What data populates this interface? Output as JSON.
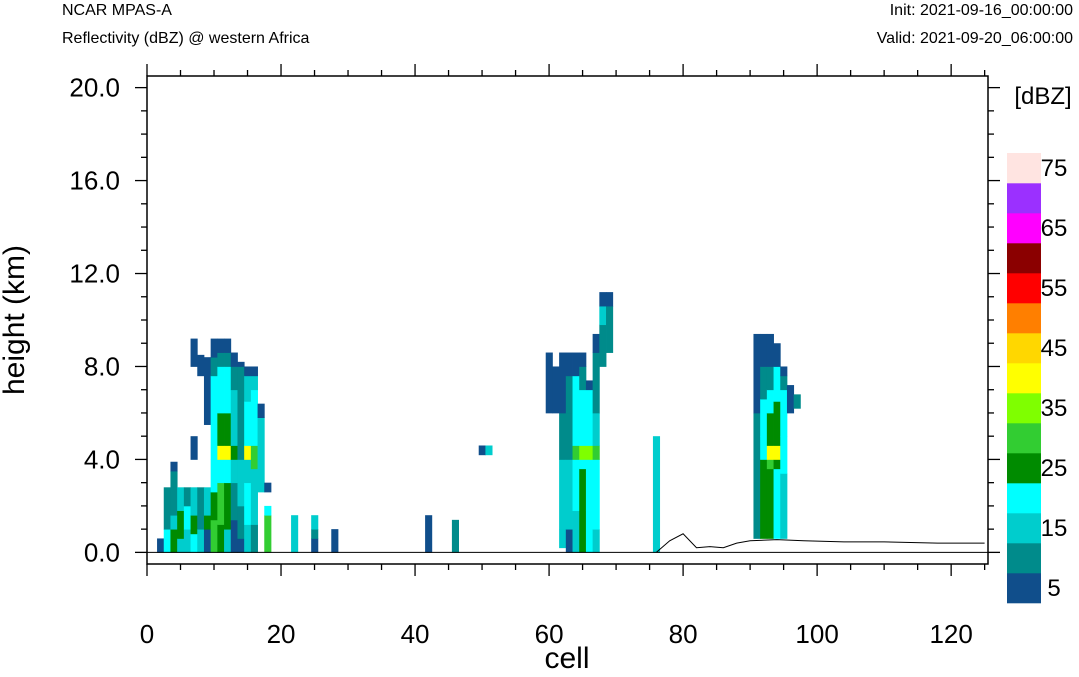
{
  "header": {
    "title": "NCAR MPAS-A",
    "subtitle": "Reflectivity (dBZ) @ western Africa",
    "init": "Init: 2021-09-16_00:00:00",
    "valid": "Valid: 2021-09-20_06:00:00"
  },
  "chart_data": {
    "type": "heatmap",
    "title": "NCAR MPAS-A",
    "subtitle": "Reflectivity (dBZ) @ western Africa",
    "xlabel": "cell",
    "ylabel": "height (km)",
    "xlim": [
      0,
      125.5
    ],
    "ylim": [
      -0.5,
      20.5
    ],
    "x_ticks": [
      "0",
      "20",
      "40",
      "60",
      "80",
      "100",
      "120"
    ],
    "y_ticks": [
      "0.0",
      "4.0",
      "8.0",
      "12.0",
      "16.0",
      "20.0"
    ],
    "colorbar": {
      "unit": "[dBZ]",
      "levels": [
        5,
        10,
        15,
        20,
        25,
        30,
        35,
        40,
        45,
        50,
        55,
        60,
        65,
        70,
        75
      ],
      "labels": [
        "5",
        "15",
        "25",
        "35",
        "45",
        "55",
        "65",
        "75"
      ],
      "colors": [
        "#104e8b",
        "#008b8b",
        "#00cdcd",
        "#00ffff",
        "#008b00",
        "#32cd32",
        "#7fff00",
        "#ffff00",
        "#ffd700",
        "#ff7f00",
        "#ff0000",
        "#8b0000",
        "#ff00ff",
        "#9b30ff",
        "#ffe4e1"
      ]
    },
    "grid": false,
    "cells": [
      [
        2,
        0.0,
        0.6,
        5
      ],
      [
        3,
        0.0,
        1.0,
        20
      ],
      [
        3,
        1.0,
        2.8,
        10
      ],
      [
        4,
        0.0,
        1.0,
        25
      ],
      [
        4,
        1.0,
        1.6,
        15
      ],
      [
        4,
        1.6,
        3.5,
        10
      ],
      [
        4,
        3.5,
        3.9,
        5
      ],
      [
        5,
        0.0,
        0.6,
        15
      ],
      [
        5,
        0.6,
        1.8,
        25
      ],
      [
        5,
        1.8,
        2.8,
        15
      ],
      [
        6,
        0.0,
        1.0,
        15
      ],
      [
        6,
        1.0,
        2.0,
        20
      ],
      [
        6,
        2.0,
        2.8,
        10
      ],
      [
        7,
        0.0,
        0.8,
        20
      ],
      [
        7,
        0.8,
        1.6,
        25
      ],
      [
        7,
        1.6,
        2.8,
        15
      ],
      [
        7,
        4.0,
        5.0,
        5
      ],
      [
        7,
        8.0,
        9.2,
        5
      ],
      [
        8,
        0.0,
        1.0,
        15
      ],
      [
        8,
        1.0,
        2.8,
        10
      ],
      [
        8,
        7.6,
        8.5,
        5
      ],
      [
        9,
        0.0,
        1.0,
        5
      ],
      [
        9,
        1.0,
        1.6,
        25
      ],
      [
        9,
        1.6,
        2.8,
        15
      ],
      [
        9,
        5.5,
        8.4,
        5
      ],
      [
        10,
        0.0,
        1.4,
        30
      ],
      [
        10,
        1.4,
        2.6,
        25
      ],
      [
        10,
        2.6,
        4.0,
        20
      ],
      [
        10,
        4.0,
        7.6,
        20
      ],
      [
        10,
        7.6,
        8.4,
        10
      ],
      [
        10,
        8.4,
        9.2,
        5
      ],
      [
        11,
        0.0,
        1.2,
        25
      ],
      [
        11,
        1.2,
        3.0,
        30
      ],
      [
        11,
        3.0,
        4.0,
        20
      ],
      [
        11,
        4.0,
        4.6,
        40
      ],
      [
        11,
        4.6,
        6.0,
        25
      ],
      [
        11,
        6.0,
        8.0,
        20
      ],
      [
        11,
        8.0,
        8.6,
        10
      ],
      [
        11,
        8.6,
        9.2,
        5
      ],
      [
        12,
        0.0,
        1.0,
        15
      ],
      [
        12,
        1.0,
        3.0,
        25
      ],
      [
        12,
        3.0,
        4.0,
        20
      ],
      [
        12,
        4.0,
        4.6,
        40
      ],
      [
        12,
        4.6,
        6.0,
        25
      ],
      [
        12,
        6.0,
        8.0,
        20
      ],
      [
        12,
        8.0,
        8.6,
        10
      ],
      [
        12,
        8.6,
        9.2,
        5
      ],
      [
        13,
        0.0,
        1.4,
        5
      ],
      [
        13,
        1.4,
        3.0,
        10
      ],
      [
        13,
        3.0,
        4.0,
        15
      ],
      [
        13,
        4.0,
        4.6,
        25
      ],
      [
        13,
        4.6,
        7.0,
        15
      ],
      [
        13,
        7.0,
        8.0,
        10
      ],
      [
        13,
        8.0,
        8.6,
        5
      ],
      [
        14,
        0.0,
        0.6,
        5
      ],
      [
        14,
        0.6,
        2.0,
        10
      ],
      [
        14,
        2.0,
        4.0,
        15
      ],
      [
        14,
        4.0,
        6.0,
        10
      ],
      [
        14,
        6.0,
        8.0,
        10
      ],
      [
        14,
        8.0,
        8.2,
        5
      ],
      [
        15,
        0.0,
        1.2,
        15
      ],
      [
        15,
        1.2,
        3.0,
        20
      ],
      [
        15,
        3.0,
        4.0,
        15
      ],
      [
        15,
        4.0,
        4.6,
        40
      ],
      [
        15,
        4.6,
        6.5,
        20
      ],
      [
        15,
        6.5,
        7.6,
        15
      ],
      [
        15,
        7.6,
        8.0,
        5
      ],
      [
        16,
        0.0,
        1.2,
        10
      ],
      [
        16,
        1.2,
        3.6,
        15
      ],
      [
        16,
        3.6,
        4.6,
        30
      ],
      [
        16,
        4.6,
        7.0,
        20
      ],
      [
        16,
        7.0,
        7.6,
        15
      ],
      [
        16,
        7.6,
        8.0,
        5
      ],
      [
        17,
        2.6,
        5.8,
        15
      ],
      [
        17,
        5.8,
        6.4,
        5
      ],
      [
        18,
        0.0,
        1.6,
        30
      ],
      [
        18,
        1.6,
        2.0,
        20
      ],
      [
        18,
        2.6,
        3.0,
        5
      ],
      [
        22,
        0.0,
        1.6,
        15
      ],
      [
        25,
        0.0,
        0.6,
        5
      ],
      [
        25,
        0.6,
        1.0,
        10
      ],
      [
        25,
        1.0,
        1.6,
        15
      ],
      [
        28,
        0.0,
        1.0,
        5
      ],
      [
        42,
        0.0,
        1.6,
        5
      ],
      [
        46,
        0.0,
        1.4,
        10
      ],
      [
        50,
        4.2,
        4.6,
        5
      ],
      [
        51,
        4.2,
        4.6,
        15
      ],
      [
        60,
        6.0,
        8.6,
        5
      ],
      [
        61,
        6.0,
        8.0,
        5
      ],
      [
        62,
        0.2,
        1.0,
        15
      ],
      [
        62,
        1.0,
        4.0,
        15
      ],
      [
        62,
        4.0,
        6.0,
        10
      ],
      [
        62,
        6.0,
        8.6,
        5
      ],
      [
        63,
        0.0,
        1.0,
        5
      ],
      [
        63,
        1.0,
        4.0,
        15
      ],
      [
        63,
        4.0,
        6.0,
        10
      ],
      [
        63,
        6.0,
        7.6,
        10
      ],
      [
        63,
        7.6,
        8.6,
        5
      ],
      [
        64,
        0.0,
        1.8,
        15
      ],
      [
        64,
        1.8,
        4.0,
        20
      ],
      [
        64,
        4.0,
        4.6,
        30
      ],
      [
        64,
        4.6,
        7.6,
        20
      ],
      [
        64,
        7.6,
        8.6,
        5
      ],
      [
        65,
        0.0,
        3.6,
        25
      ],
      [
        65,
        3.6,
        4.0,
        20
      ],
      [
        65,
        4.0,
        4.6,
        35
      ],
      [
        65,
        4.6,
        7.0,
        20
      ],
      [
        65,
        7.0,
        8.0,
        10
      ],
      [
        65,
        8.0,
        8.6,
        5
      ],
      [
        66,
        0.0,
        1.8,
        20
      ],
      [
        66,
        1.8,
        4.0,
        20
      ],
      [
        66,
        4.0,
        4.6,
        35
      ],
      [
        66,
        4.6,
        7.0,
        20
      ],
      [
        66,
        7.0,
        7.4,
        5
      ],
      [
        67,
        0.0,
        1.0,
        15
      ],
      [
        67,
        1.0,
        4.0,
        20
      ],
      [
        67,
        4.0,
        4.6,
        30
      ],
      [
        67,
        4.6,
        6.0,
        15
      ],
      [
        67,
        6.0,
        8.6,
        10
      ],
      [
        67,
        8.6,
        9.4,
        5
      ],
      [
        68,
        8.0,
        9.8,
        10
      ],
      [
        68,
        9.8,
        10.6,
        15
      ],
      [
        68,
        10.6,
        11.2,
        5
      ],
      [
        69,
        8.6,
        10.6,
        10
      ],
      [
        69,
        10.6,
        11.2,
        5
      ],
      [
        76,
        0.0,
        0.4,
        15
      ],
      [
        76,
        0.4,
        5.0,
        15
      ],
      [
        91,
        0.6,
        1.4,
        10
      ],
      [
        91,
        1.4,
        4.0,
        10
      ],
      [
        91,
        4.0,
        6.0,
        10
      ],
      [
        91,
        6.0,
        9.4,
        5
      ],
      [
        92,
        0.6,
        3.6,
        25
      ],
      [
        92,
        3.6,
        4.0,
        25
      ],
      [
        92,
        4.0,
        5.0,
        20
      ],
      [
        92,
        5.0,
        6.6,
        20
      ],
      [
        92,
        6.6,
        8.0,
        10
      ],
      [
        92,
        8.0,
        9.4,
        5
      ],
      [
        93,
        0.6,
        3.6,
        25
      ],
      [
        93,
        3.6,
        4.0,
        30
      ],
      [
        93,
        4.0,
        4.6,
        40
      ],
      [
        93,
        4.6,
        6.0,
        25
      ],
      [
        93,
        6.0,
        7.0,
        20
      ],
      [
        93,
        7.0,
        8.0,
        10
      ],
      [
        93,
        8.0,
        9.4,
        5
      ],
      [
        94,
        0.6,
        3.6,
        20
      ],
      [
        94,
        3.6,
        4.0,
        25
      ],
      [
        94,
        4.0,
        4.6,
        40
      ],
      [
        94,
        4.6,
        6.5,
        25
      ],
      [
        94,
        6.5,
        8.0,
        20
      ],
      [
        94,
        8.0,
        9.0,
        5
      ],
      [
        95,
        0.6,
        3.4,
        15
      ],
      [
        95,
        3.4,
        5.0,
        20
      ],
      [
        95,
        5.0,
        7.0,
        20
      ],
      [
        95,
        7.0,
        7.6,
        10
      ],
      [
        95,
        7.6,
        8.0,
        5
      ],
      [
        96,
        6.0,
        7.2,
        5
      ],
      [
        97,
        6.2,
        6.8,
        10
      ]
    ],
    "terrain": [
      [
        76,
        0.0
      ],
      [
        78,
        0.5
      ],
      [
        80,
        0.8
      ],
      [
        82,
        0.2
      ],
      [
        84,
        0.25
      ],
      [
        86,
        0.2
      ],
      [
        88,
        0.4
      ],
      [
        90,
        0.5
      ],
      [
        94,
        0.55
      ],
      [
        98,
        0.5
      ],
      [
        104,
        0.45
      ],
      [
        110,
        0.45
      ],
      [
        118,
        0.4
      ],
      [
        125,
        0.4
      ]
    ]
  }
}
